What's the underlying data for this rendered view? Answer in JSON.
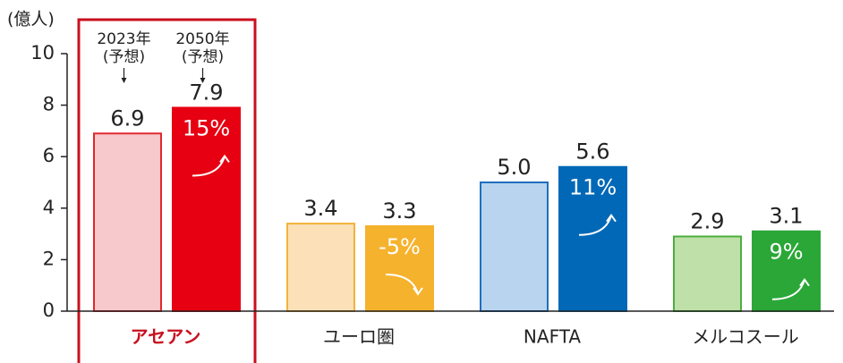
{
  "chart_data": {
    "type": "bar",
    "ylabel": "(億人)",
    "categories": [
      "アセアン",
      "ユーロ圏",
      "NAFTA",
      "メルコスール"
    ],
    "highlight_category": "アセアン",
    "series": [
      {
        "label_lines": [
          "2023年",
          "(予想)"
        ],
        "colors": [
          "#f7c9cc",
          "#fbe0b8",
          "#b8d4ee",
          "#bfe0a8"
        ],
        "edge_colors": [
          "#e0282e",
          "#f2b33a",
          "#1f6fbf",
          "#4cae3f"
        ],
        "values": [
          6.9,
          3.4,
          5.0,
          2.9
        ],
        "value_labels": [
          "6.9",
          "3.4",
          "5.0",
          "2.9"
        ]
      },
      {
        "label_lines": [
          "2050年",
          "(予想)"
        ],
        "colors": [
          "#e60012",
          "#f5b22d",
          "#0068b7",
          "#2aa737"
        ],
        "edge_colors": [
          "#e60012",
          "#f5b22d",
          "#0068b7",
          "#2aa737"
        ],
        "values": [
          7.9,
          3.3,
          5.6,
          3.1
        ],
        "value_labels": [
          "7.9",
          "3.3",
          "5.6",
          "3.1"
        ]
      }
    ],
    "growth": {
      "values": [
        15,
        -5,
        11,
        9
      ],
      "labels": [
        "15%",
        "-5%",
        "11%",
        "9%"
      ]
    },
    "ylim": [
      0,
      10
    ],
    "yticks": [
      0,
      2,
      4,
      6,
      8,
      10
    ],
    "highlight_color": "#c8101e"
  }
}
